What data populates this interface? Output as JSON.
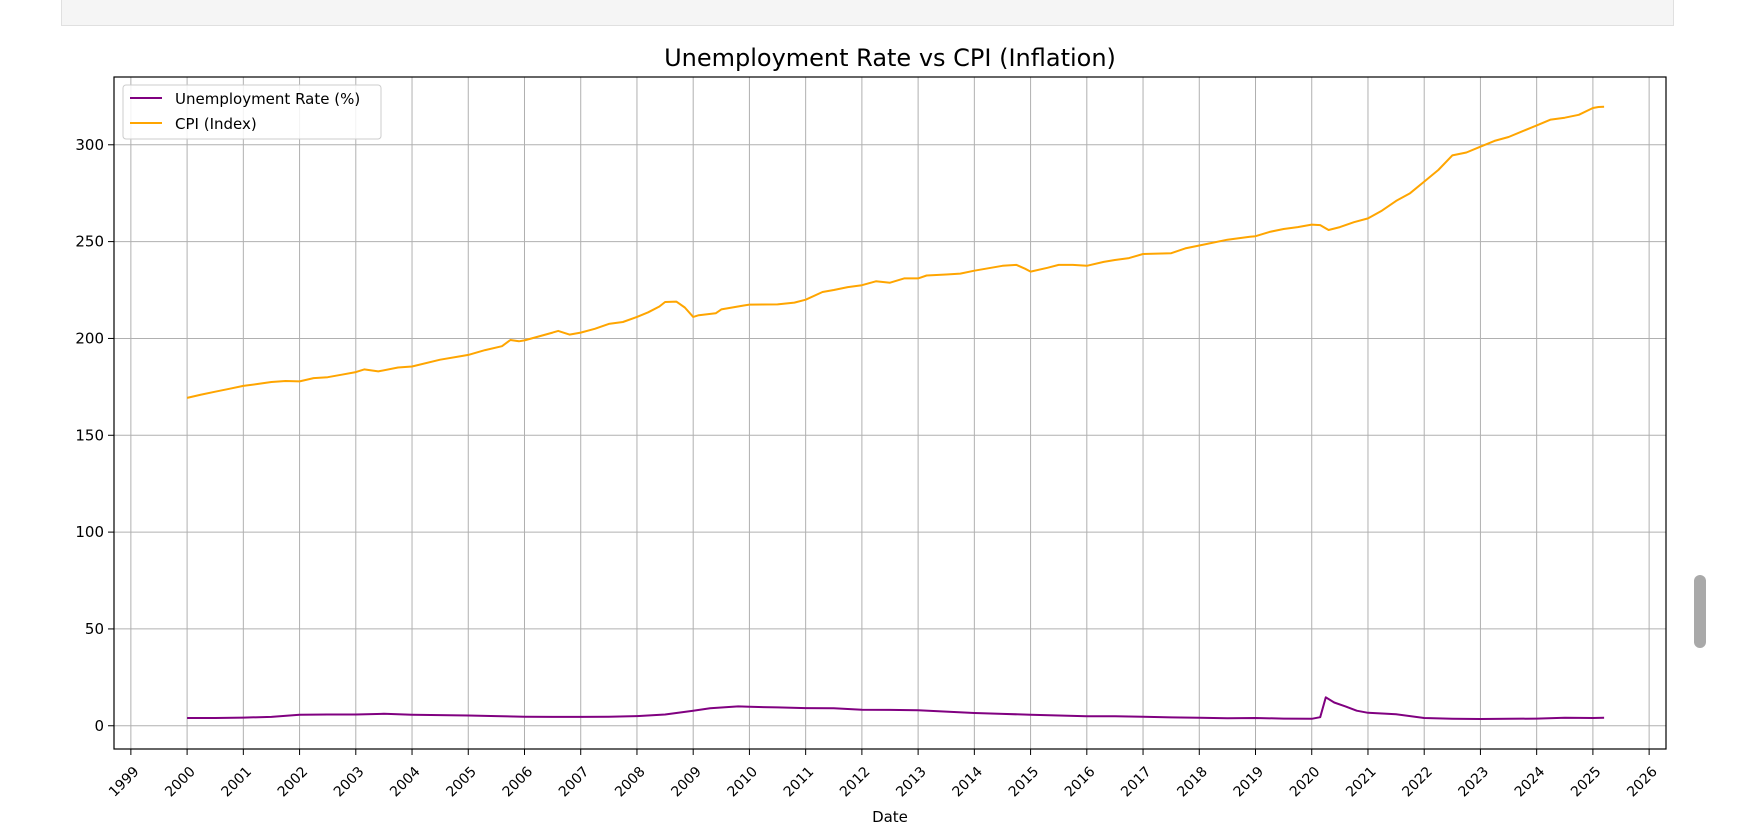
{
  "chart_data": {
    "type": "line",
    "title": "Unemployment Rate vs CPI (Inflation)",
    "xlabel": "Date",
    "ylabel": "",
    "xlim": [
      1998.7,
      2026.3
    ],
    "ylim": [
      -12,
      335
    ],
    "x_ticks": [
      "1999",
      "2000",
      "2001",
      "2002",
      "2003",
      "2004",
      "2005",
      "2006",
      "2007",
      "2008",
      "2009",
      "2010",
      "2011",
      "2012",
      "2013",
      "2014",
      "2015",
      "2016",
      "2017",
      "2018",
      "2019",
      "2020",
      "2021",
      "2022",
      "2023",
      "2024",
      "2025",
      "2026"
    ],
    "y_ticks": [
      0,
      50,
      100,
      150,
      200,
      250,
      300
    ],
    "grid": true,
    "legend_position": "top-left",
    "series": [
      {
        "name": "Unemployment Rate (%)",
        "color": "#800080",
        "points": [
          [
            2000.0,
            4.0
          ],
          [
            2000.5,
            4.0
          ],
          [
            2001.0,
            4.2
          ],
          [
            2001.5,
            4.6
          ],
          [
            2002.0,
            5.7
          ],
          [
            2002.5,
            5.8
          ],
          [
            2003.0,
            5.8
          ],
          [
            2003.5,
            6.2
          ],
          [
            2004.0,
            5.7
          ],
          [
            2004.5,
            5.5
          ],
          [
            2005.0,
            5.3
          ],
          [
            2005.5,
            5.0
          ],
          [
            2006.0,
            4.7
          ],
          [
            2006.5,
            4.6
          ],
          [
            2007.0,
            4.6
          ],
          [
            2007.5,
            4.7
          ],
          [
            2008.0,
            5.0
          ],
          [
            2008.5,
            5.8
          ],
          [
            2009.0,
            7.8
          ],
          [
            2009.3,
            9.0
          ],
          [
            2009.8,
            10.0
          ],
          [
            2010.0,
            9.8
          ],
          [
            2010.5,
            9.5
          ],
          [
            2011.0,
            9.1
          ],
          [
            2011.5,
            9.0
          ],
          [
            2012.0,
            8.3
          ],
          [
            2012.5,
            8.2
          ],
          [
            2013.0,
            8.0
          ],
          [
            2013.5,
            7.3
          ],
          [
            2014.0,
            6.6
          ],
          [
            2014.5,
            6.1
          ],
          [
            2015.0,
            5.7
          ],
          [
            2015.5,
            5.3
          ],
          [
            2016.0,
            4.9
          ],
          [
            2016.5,
            4.9
          ],
          [
            2017.0,
            4.7
          ],
          [
            2017.5,
            4.3
          ],
          [
            2018.0,
            4.1
          ],
          [
            2018.5,
            3.9
          ],
          [
            2019.0,
            4.0
          ],
          [
            2019.5,
            3.7
          ],
          [
            2020.0,
            3.6
          ],
          [
            2020.15,
            4.4
          ],
          [
            2020.25,
            14.7
          ],
          [
            2020.4,
            12.0
          ],
          [
            2020.6,
            10.0
          ],
          [
            2020.8,
            7.8
          ],
          [
            2021.0,
            6.7
          ],
          [
            2021.5,
            5.9
          ],
          [
            2022.0,
            4.0
          ],
          [
            2022.5,
            3.6
          ],
          [
            2023.0,
            3.5
          ],
          [
            2023.5,
            3.6
          ],
          [
            2024.0,
            3.7
          ],
          [
            2024.5,
            4.1
          ],
          [
            2025.0,
            4.0
          ],
          [
            2025.2,
            4.1
          ]
        ]
      },
      {
        "name": "CPI (Index)",
        "color": "#ffa500",
        "points": [
          [
            2000.0,
            169.3
          ],
          [
            2000.25,
            171.0
          ],
          [
            2000.5,
            172.5
          ],
          [
            2000.75,
            174.0
          ],
          [
            2001.0,
            175.5
          ],
          [
            2001.25,
            176.5
          ],
          [
            2001.5,
            177.5
          ],
          [
            2001.75,
            178.0
          ],
          [
            2002.0,
            177.8
          ],
          [
            2002.25,
            179.5
          ],
          [
            2002.5,
            180.0
          ],
          [
            2002.75,
            181.3
          ],
          [
            2003.0,
            182.6
          ],
          [
            2003.15,
            184.0
          ],
          [
            2003.4,
            183.0
          ],
          [
            2003.75,
            185.0
          ],
          [
            2004.0,
            185.5
          ],
          [
            2004.5,
            189.0
          ],
          [
            2004.9,
            191.0
          ],
          [
            2005.0,
            191.5
          ],
          [
            2005.3,
            194.0
          ],
          [
            2005.6,
            196.0
          ],
          [
            2005.75,
            199.2
          ],
          [
            2005.9,
            198.5
          ],
          [
            2006.0,
            199.0
          ],
          [
            2006.25,
            201.0
          ],
          [
            2006.5,
            203.0
          ],
          [
            2006.6,
            203.9
          ],
          [
            2006.8,
            202.0
          ],
          [
            2007.0,
            203.0
          ],
          [
            2007.25,
            205.0
          ],
          [
            2007.5,
            207.5
          ],
          [
            2007.75,
            208.5
          ],
          [
            2008.0,
            211.1
          ],
          [
            2008.2,
            213.5
          ],
          [
            2008.4,
            216.5
          ],
          [
            2008.5,
            218.8
          ],
          [
            2008.7,
            219.0
          ],
          [
            2008.85,
            216.0
          ],
          [
            2009.0,
            211.1
          ],
          [
            2009.1,
            212.0
          ],
          [
            2009.4,
            213.0
          ],
          [
            2009.5,
            215.0
          ],
          [
            2009.9,
            217.0
          ],
          [
            2010.0,
            217.5
          ],
          [
            2010.5,
            217.6
          ],
          [
            2010.8,
            218.5
          ],
          [
            2011.0,
            220.0
          ],
          [
            2011.3,
            224.0
          ],
          [
            2011.5,
            225.0
          ],
          [
            2011.75,
            226.5
          ],
          [
            2012.0,
            227.5
          ],
          [
            2012.25,
            229.5
          ],
          [
            2012.5,
            228.8
          ],
          [
            2012.75,
            231.0
          ],
          [
            2013.0,
            231.0
          ],
          [
            2013.15,
            232.5
          ],
          [
            2013.5,
            233.0
          ],
          [
            2013.75,
            233.5
          ],
          [
            2014.0,
            235.0
          ],
          [
            2014.5,
            237.5
          ],
          [
            2014.75,
            238.0
          ],
          [
            2014.9,
            236.0
          ],
          [
            2015.0,
            234.5
          ],
          [
            2015.3,
            236.5
          ],
          [
            2015.5,
            238.0
          ],
          [
            2015.75,
            238.0
          ],
          [
            2016.0,
            237.5
          ],
          [
            2016.3,
            239.5
          ],
          [
            2016.5,
            240.5
          ],
          [
            2016.75,
            241.5
          ],
          [
            2017.0,
            243.6
          ],
          [
            2017.5,
            244.0
          ],
          [
            2017.75,
            246.5
          ],
          [
            2018.0,
            248.0
          ],
          [
            2018.5,
            251.0
          ],
          [
            2018.9,
            252.5
          ],
          [
            2019.0,
            252.8
          ],
          [
            2019.25,
            255.0
          ],
          [
            2019.5,
            256.5
          ],
          [
            2019.75,
            257.5
          ],
          [
            2020.0,
            258.8
          ],
          [
            2020.15,
            258.5
          ],
          [
            2020.3,
            256.0
          ],
          [
            2020.5,
            257.5
          ],
          [
            2020.75,
            260.0
          ],
          [
            2021.0,
            262.0
          ],
          [
            2021.25,
            266.0
          ],
          [
            2021.5,
            271.0
          ],
          [
            2021.75,
            275.0
          ],
          [
            2022.0,
            281.0
          ],
          [
            2022.25,
            287.0
          ],
          [
            2022.5,
            294.5
          ],
          [
            2022.75,
            296.0
          ],
          [
            2023.0,
            299.0
          ],
          [
            2023.25,
            302.0
          ],
          [
            2023.5,
            304.0
          ],
          [
            2023.75,
            307.0
          ],
          [
            2024.0,
            310.0
          ],
          [
            2024.25,
            313.0
          ],
          [
            2024.5,
            314.0
          ],
          [
            2024.75,
            315.5
          ],
          [
            2025.0,
            319.0
          ],
          [
            2025.1,
            319.5
          ],
          [
            2025.2,
            319.6
          ]
        ]
      }
    ]
  }
}
